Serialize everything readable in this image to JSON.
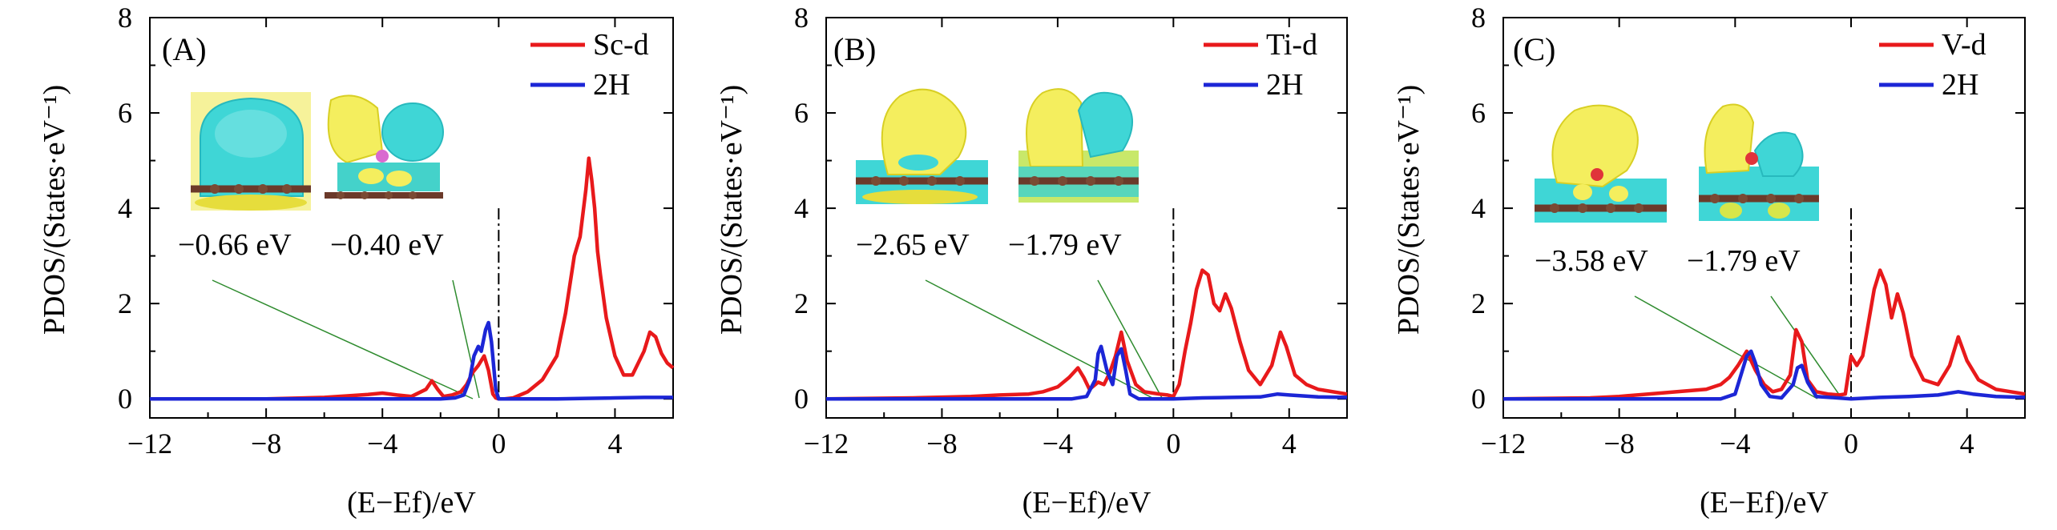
{
  "figure": {
    "xlabel": "(E−Ef)/eV",
    "ylabel": "PDOS/(States·eV⁻¹)"
  },
  "colors": {
    "metal": "#e8191b",
    "h2": "#1c26d6",
    "guide": "#2e8b2e",
    "charge_yellow": "#f4ee5e",
    "charge_cyan": "#3fd6d6",
    "atom_c": "#6b3a2a"
  },
  "chart_data": [
    {
      "type": "line",
      "panel_label": "(A)",
      "xlabel": "(E−Ef)/eV",
      "ylabel": "PDOS/(States·eV⁻¹)",
      "xlim": [
        -12,
        6
      ],
      "ylim": [
        -0.4,
        8
      ],
      "xticks": [
        -12,
        -8,
        -4,
        0,
        4
      ],
      "yticks": [
        0,
        2,
        4,
        6,
        8
      ],
      "fermi_line_x": 0,
      "legend": "top-right",
      "grid": false,
      "insets": [
        "bonding-orbital",
        "bonding-orbital"
      ],
      "annotations": [
        {
          "text": "−0.66 eV",
          "x": -0.66
        },
        {
          "text": "−0.40 eV",
          "x": -0.4
        }
      ],
      "series": [
        {
          "name": "Sc-d",
          "color": "#e8191b",
          "x": [
            -12,
            -8,
            -6,
            -5,
            -4.5,
            -4,
            -3.5,
            -3,
            -2.5,
            -2.3,
            -2.1,
            -1.9,
            -1.6,
            -1.3,
            -1.1,
            -0.9,
            -0.7,
            -0.5,
            -0.35,
            -0.2,
            -0.1,
            0,
            0.2,
            0.5,
            1,
            1.5,
            2,
            2.3,
            2.6,
            2.8,
            3.0,
            3.1,
            3.2,
            3.3,
            3.4,
            3.5,
            3.7,
            4.0,
            4.3,
            4.6,
            5.0,
            5.2,
            5.4,
            5.6,
            5.8,
            6
          ],
          "y": [
            0,
            0,
            0.03,
            0.07,
            0.09,
            0.12,
            0.08,
            0.05,
            0.2,
            0.38,
            0.2,
            0.05,
            0.08,
            0.15,
            0.3,
            0.55,
            0.7,
            0.9,
            0.6,
            0.1,
            0.02,
            0,
            0,
            0.02,
            0.15,
            0.4,
            0.9,
            1.8,
            3.0,
            3.4,
            4.4,
            5.05,
            4.6,
            4.0,
            3.1,
            2.6,
            1.7,
            0.9,
            0.5,
            0.5,
            1.0,
            1.4,
            1.3,
            0.95,
            0.75,
            0.65
          ]
        },
        {
          "name": "2H",
          "color": "#1c26d6",
          "x": [
            -12,
            -6,
            -2,
            -1.5,
            -1.2,
            -1.0,
            -0.85,
            -0.7,
            -0.6,
            -0.45,
            -0.35,
            -0.25,
            -0.1,
            0,
            1,
            2,
            3,
            4,
            5,
            6
          ],
          "y": [
            0,
            0,
            0,
            0.02,
            0.08,
            0.4,
            0.9,
            1.1,
            1.0,
            1.45,
            1.6,
            1.2,
            0.2,
            0,
            0,
            0,
            0.01,
            0.02,
            0.03,
            0.03
          ]
        }
      ]
    },
    {
      "type": "line",
      "panel_label": "(B)",
      "xlabel": "(E−Ef)/eV",
      "ylabel": "PDOS/(States·eV⁻¹)",
      "xlim": [
        -12,
        6
      ],
      "ylim": [
        -0.4,
        8
      ],
      "xticks": [
        -12,
        -8,
        -4,
        0,
        4
      ],
      "yticks": [
        0,
        2,
        4,
        6,
        8
      ],
      "fermi_line_x": 0,
      "legend": "top-right",
      "grid": false,
      "insets": [
        "bonding-orbital",
        "bonding-orbital"
      ],
      "annotations": [
        {
          "text": "−2.65 eV",
          "x": -2.65
        },
        {
          "text": "−1.79 eV",
          "x": -1.79
        }
      ],
      "series": [
        {
          "name": "Ti-d",
          "color": "#e8191b",
          "x": [
            -12,
            -9,
            -7,
            -6,
            -5,
            -4.5,
            -4,
            -3.6,
            -3.3,
            -3.1,
            -2.9,
            -2.6,
            -2.4,
            -2.2,
            -2.0,
            -1.8,
            -1.6,
            -1.3,
            -1.0,
            -0.5,
            -0.2,
            0,
            0.2,
            0.4,
            0.6,
            0.8,
            1.0,
            1.2,
            1.4,
            1.6,
            1.8,
            2.0,
            2.3,
            2.6,
            3.0,
            3.4,
            3.7,
            3.9,
            4.2,
            4.6,
            5,
            6
          ],
          "y": [
            0,
            0.02,
            0.05,
            0.08,
            0.1,
            0.15,
            0.25,
            0.45,
            0.65,
            0.45,
            0.2,
            0.35,
            0.3,
            0.55,
            0.9,
            1.4,
            0.8,
            0.3,
            0.15,
            0.1,
            0.08,
            0.05,
            0.3,
            1.0,
            1.6,
            2.3,
            2.7,
            2.6,
            2.0,
            1.85,
            2.2,
            1.9,
            1.2,
            0.6,
            0.3,
            0.7,
            1.4,
            1.1,
            0.5,
            0.3,
            0.2,
            0.1
          ]
        },
        {
          "name": "2H",
          "color": "#1c26d6",
          "x": [
            -12,
            -6,
            -3.5,
            -3,
            -2.7,
            -2.6,
            -2.5,
            -2.3,
            -2.1,
            -1.95,
            -1.8,
            -1.65,
            -1.5,
            -1.2,
            -0.5,
            0,
            1,
            2,
            3,
            3.6,
            4,
            5,
            6
          ],
          "y": [
            0,
            0,
            0,
            0.05,
            0.4,
            0.95,
            1.1,
            0.6,
            0.3,
            0.9,
            1.05,
            0.6,
            0.1,
            0,
            0,
            0,
            0.02,
            0.03,
            0.04,
            0.1,
            0.08,
            0.04,
            0.03
          ]
        }
      ]
    },
    {
      "type": "line",
      "panel_label": "(C)",
      "xlabel": "(E−Ef)/eV",
      "ylabel": "PDOS/(States·eV⁻¹)",
      "xlim": [
        -12,
        6
      ],
      "ylim": [
        -0.4,
        8
      ],
      "xticks": [
        -12,
        -8,
        -4,
        0,
        4
      ],
      "yticks": [
        0,
        2,
        4,
        6,
        8
      ],
      "fermi_line_x": 0,
      "legend": "top-right",
      "grid": false,
      "insets": [
        "bonding-orbital",
        "bonding-orbital"
      ],
      "annotations": [
        {
          "text": "−3.58 eV",
          "x": -3.58
        },
        {
          "text": "−1.79 eV",
          "x": -1.79
        }
      ],
      "series": [
        {
          "name": "V-d",
          "color": "#e8191b",
          "x": [
            -12,
            -9,
            -8,
            -7,
            -6,
            -5,
            -4.5,
            -4.2,
            -3.9,
            -3.6,
            -3.3,
            -3.0,
            -2.7,
            -2.4,
            -2.1,
            -1.9,
            -1.7,
            -1.5,
            -1.2,
            -0.8,
            -0.4,
            -0.2,
            0,
            0.2,
            0.4,
            0.6,
            0.8,
            1.0,
            1.2,
            1.4,
            1.6,
            1.8,
            2.1,
            2.5,
            3.0,
            3.4,
            3.7,
            4.0,
            4.4,
            5,
            6
          ],
          "y": [
            0,
            0.02,
            0.05,
            0.1,
            0.15,
            0.2,
            0.3,
            0.45,
            0.7,
            1.0,
            0.6,
            0.3,
            0.15,
            0.2,
            0.5,
            1.45,
            1.2,
            0.4,
            0.15,
            0.1,
            0.08,
            0.1,
            0.9,
            0.7,
            0.9,
            1.6,
            2.3,
            2.7,
            2.4,
            1.7,
            2.2,
            1.8,
            0.9,
            0.4,
            0.3,
            0.7,
            1.3,
            0.8,
            0.4,
            0.2,
            0.1
          ]
        },
        {
          "name": "2H",
          "color": "#1c26d6",
          "x": [
            -12,
            -6,
            -4.5,
            -4.0,
            -3.8,
            -3.6,
            -3.45,
            -3.3,
            -3.1,
            -2.8,
            -2.4,
            -2.0,
            -1.85,
            -1.7,
            -1.5,
            -1.2,
            0,
            1,
            2,
            3,
            3.7,
            4.2,
            5,
            6
          ],
          "y": [
            0,
            0,
            0,
            0.1,
            0.5,
            0.9,
            1.0,
            0.75,
            0.3,
            0.05,
            0.02,
            0.3,
            0.65,
            0.7,
            0.35,
            0.05,
            0,
            0.03,
            0.05,
            0.08,
            0.15,
            0.1,
            0.05,
            0.03
          ]
        }
      ]
    }
  ]
}
